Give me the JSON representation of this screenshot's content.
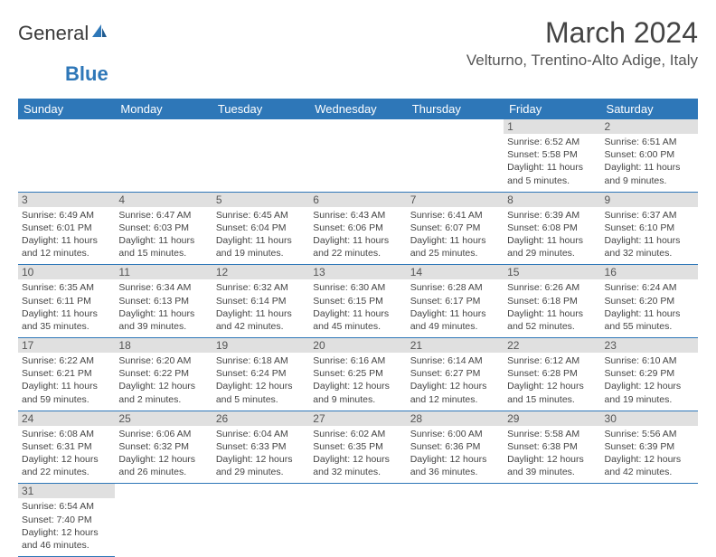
{
  "logo": {
    "text1": "General",
    "text2": "Blue"
  },
  "title": "March 2024",
  "location": "Velturno, Trentino-Alto Adige, Italy",
  "colors": {
    "header_bg": "#2e77b8",
    "header_text": "#ffffff",
    "daynum_bg": "#e0e0e0",
    "border": "#2e77b8"
  },
  "weekdays": [
    "Sunday",
    "Monday",
    "Tuesday",
    "Wednesday",
    "Thursday",
    "Friday",
    "Saturday"
  ],
  "weeks": [
    [
      null,
      null,
      null,
      null,
      null,
      {
        "n": "1",
        "sr": "Sunrise: 6:52 AM",
        "ss": "Sunset: 5:58 PM",
        "dl": "Daylight: 11 hours and 5 minutes."
      },
      {
        "n": "2",
        "sr": "Sunrise: 6:51 AM",
        "ss": "Sunset: 6:00 PM",
        "dl": "Daylight: 11 hours and 9 minutes."
      }
    ],
    [
      {
        "n": "3",
        "sr": "Sunrise: 6:49 AM",
        "ss": "Sunset: 6:01 PM",
        "dl": "Daylight: 11 hours and 12 minutes."
      },
      {
        "n": "4",
        "sr": "Sunrise: 6:47 AM",
        "ss": "Sunset: 6:03 PM",
        "dl": "Daylight: 11 hours and 15 minutes."
      },
      {
        "n": "5",
        "sr": "Sunrise: 6:45 AM",
        "ss": "Sunset: 6:04 PM",
        "dl": "Daylight: 11 hours and 19 minutes."
      },
      {
        "n": "6",
        "sr": "Sunrise: 6:43 AM",
        "ss": "Sunset: 6:06 PM",
        "dl": "Daylight: 11 hours and 22 minutes."
      },
      {
        "n": "7",
        "sr": "Sunrise: 6:41 AM",
        "ss": "Sunset: 6:07 PM",
        "dl": "Daylight: 11 hours and 25 minutes."
      },
      {
        "n": "8",
        "sr": "Sunrise: 6:39 AM",
        "ss": "Sunset: 6:08 PM",
        "dl": "Daylight: 11 hours and 29 minutes."
      },
      {
        "n": "9",
        "sr": "Sunrise: 6:37 AM",
        "ss": "Sunset: 6:10 PM",
        "dl": "Daylight: 11 hours and 32 minutes."
      }
    ],
    [
      {
        "n": "10",
        "sr": "Sunrise: 6:35 AM",
        "ss": "Sunset: 6:11 PM",
        "dl": "Daylight: 11 hours and 35 minutes."
      },
      {
        "n": "11",
        "sr": "Sunrise: 6:34 AM",
        "ss": "Sunset: 6:13 PM",
        "dl": "Daylight: 11 hours and 39 minutes."
      },
      {
        "n": "12",
        "sr": "Sunrise: 6:32 AM",
        "ss": "Sunset: 6:14 PM",
        "dl": "Daylight: 11 hours and 42 minutes."
      },
      {
        "n": "13",
        "sr": "Sunrise: 6:30 AM",
        "ss": "Sunset: 6:15 PM",
        "dl": "Daylight: 11 hours and 45 minutes."
      },
      {
        "n": "14",
        "sr": "Sunrise: 6:28 AM",
        "ss": "Sunset: 6:17 PM",
        "dl": "Daylight: 11 hours and 49 minutes."
      },
      {
        "n": "15",
        "sr": "Sunrise: 6:26 AM",
        "ss": "Sunset: 6:18 PM",
        "dl": "Daylight: 11 hours and 52 minutes."
      },
      {
        "n": "16",
        "sr": "Sunrise: 6:24 AM",
        "ss": "Sunset: 6:20 PM",
        "dl": "Daylight: 11 hours and 55 minutes."
      }
    ],
    [
      {
        "n": "17",
        "sr": "Sunrise: 6:22 AM",
        "ss": "Sunset: 6:21 PM",
        "dl": "Daylight: 11 hours and 59 minutes."
      },
      {
        "n": "18",
        "sr": "Sunrise: 6:20 AM",
        "ss": "Sunset: 6:22 PM",
        "dl": "Daylight: 12 hours and 2 minutes."
      },
      {
        "n": "19",
        "sr": "Sunrise: 6:18 AM",
        "ss": "Sunset: 6:24 PM",
        "dl": "Daylight: 12 hours and 5 minutes."
      },
      {
        "n": "20",
        "sr": "Sunrise: 6:16 AM",
        "ss": "Sunset: 6:25 PM",
        "dl": "Daylight: 12 hours and 9 minutes."
      },
      {
        "n": "21",
        "sr": "Sunrise: 6:14 AM",
        "ss": "Sunset: 6:27 PM",
        "dl": "Daylight: 12 hours and 12 minutes."
      },
      {
        "n": "22",
        "sr": "Sunrise: 6:12 AM",
        "ss": "Sunset: 6:28 PM",
        "dl": "Daylight: 12 hours and 15 minutes."
      },
      {
        "n": "23",
        "sr": "Sunrise: 6:10 AM",
        "ss": "Sunset: 6:29 PM",
        "dl": "Daylight: 12 hours and 19 minutes."
      }
    ],
    [
      {
        "n": "24",
        "sr": "Sunrise: 6:08 AM",
        "ss": "Sunset: 6:31 PM",
        "dl": "Daylight: 12 hours and 22 minutes."
      },
      {
        "n": "25",
        "sr": "Sunrise: 6:06 AM",
        "ss": "Sunset: 6:32 PM",
        "dl": "Daylight: 12 hours and 26 minutes."
      },
      {
        "n": "26",
        "sr": "Sunrise: 6:04 AM",
        "ss": "Sunset: 6:33 PM",
        "dl": "Daylight: 12 hours and 29 minutes."
      },
      {
        "n": "27",
        "sr": "Sunrise: 6:02 AM",
        "ss": "Sunset: 6:35 PM",
        "dl": "Daylight: 12 hours and 32 minutes."
      },
      {
        "n": "28",
        "sr": "Sunrise: 6:00 AM",
        "ss": "Sunset: 6:36 PM",
        "dl": "Daylight: 12 hours and 36 minutes."
      },
      {
        "n": "29",
        "sr": "Sunrise: 5:58 AM",
        "ss": "Sunset: 6:38 PM",
        "dl": "Daylight: 12 hours and 39 minutes."
      },
      {
        "n": "30",
        "sr": "Sunrise: 5:56 AM",
        "ss": "Sunset: 6:39 PM",
        "dl": "Daylight: 12 hours and 42 minutes."
      }
    ],
    [
      {
        "n": "31",
        "sr": "Sunrise: 6:54 AM",
        "ss": "Sunset: 7:40 PM",
        "dl": "Daylight: 12 hours and 46 minutes."
      },
      null,
      null,
      null,
      null,
      null,
      null
    ]
  ]
}
